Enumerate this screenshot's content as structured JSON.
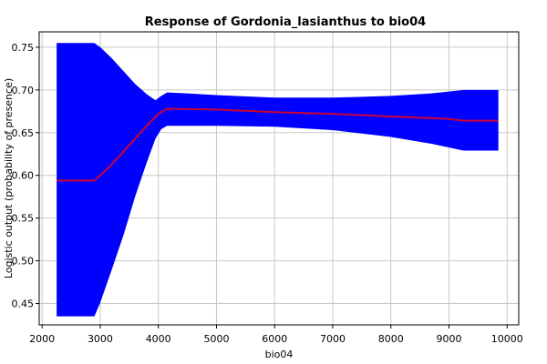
{
  "chart_data": {
    "type": "area",
    "title": "Response of Gordonia_lasianthus to bio04",
    "xlabel": "bio04",
    "ylabel": "Logistic output (probability of presence)",
    "xlim": [
      1950,
      10200
    ],
    "ylim": [
      0.425,
      0.768
    ],
    "grid": true,
    "x_ticks": [
      2000,
      3000,
      4000,
      5000,
      6000,
      7000,
      8000,
      9000,
      10000
    ],
    "y_ticks": [
      0.45,
      0.5,
      0.55,
      0.6,
      0.65,
      0.7,
      0.75
    ],
    "x_tick_labels": [
      "2000",
      "3000",
      "4000",
      "5000",
      "6000",
      "7000",
      "8000",
      "9000",
      "10000"
    ],
    "y_tick_labels": [
      "0.45",
      "0.50",
      "0.55",
      "0.60",
      "0.65",
      "0.70",
      "0.75"
    ],
    "band_color": "#0000ff",
    "line_color": "#cc0033",
    "series": [
      {
        "type": "band",
        "x": [
          2250,
          2900,
          3000,
          3200,
          3400,
          3600,
          3800,
          3950,
          4050,
          4150,
          4500,
          5000,
          6000,
          7000,
          8000,
          8700,
          9250,
          9850
        ],
        "upper": [
          0.755,
          0.755,
          0.75,
          0.737,
          0.722,
          0.707,
          0.695,
          0.688,
          0.693,
          0.697,
          0.696,
          0.694,
          0.691,
          0.691,
          0.693,
          0.696,
          0.7,
          0.7
        ],
        "lower": [
          0.435,
          0.435,
          0.451,
          0.49,
          0.53,
          0.575,
          0.615,
          0.643,
          0.654,
          0.658,
          0.658,
          0.658,
          0.657,
          0.653,
          0.645,
          0.637,
          0.629,
          0.629
        ]
      },
      {
        "type": "line",
        "x": [
          2250,
          2900,
          3000,
          3200,
          3400,
          3600,
          3800,
          4000,
          4150,
          5000,
          6000,
          7000,
          8000,
          9000,
          9250,
          9850
        ],
        "values": [
          0.594,
          0.594,
          0.6,
          0.613,
          0.628,
          0.643,
          0.658,
          0.672,
          0.678,
          0.677,
          0.674,
          0.672,
          0.669,
          0.666,
          0.664,
          0.664
        ]
      }
    ]
  }
}
